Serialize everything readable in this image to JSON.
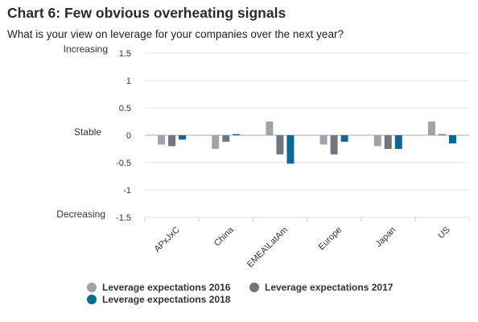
{
  "title": "Chart 6: Few obvious overheating signals",
  "subtitle": "What is your view on leverage for your companies over the next year?",
  "chart_data": {
    "type": "bar",
    "categories": [
      "APxJxC",
      "China",
      "EMEA\\LatAm",
      "Europe",
      "Japan",
      "US"
    ],
    "series": [
      {
        "name": "Leverage expectations 2016",
        "color": "#a0a3a7",
        "values": [
          -0.17,
          -0.25,
          0.25,
          -0.17,
          -0.2,
          0.25
        ]
      },
      {
        "name": "Leverage expectations 2017",
        "color": "#707781",
        "values": [
          -0.2,
          -0.12,
          -0.35,
          -0.35,
          -0.25,
          0.02
        ]
      },
      {
        "name": "Leverage expectations 2018",
        "color": "#0a6a95",
        "values": [
          -0.08,
          0.02,
          -0.52,
          -0.12,
          -0.25,
          -0.15
        ]
      }
    ],
    "ylim": [
      -1.5,
      1.5
    ],
    "yticks": [
      "1.5",
      "1",
      "0.5",
      "0",
      "-0.5",
      "-1",
      "-1.5"
    ],
    "side_labels": {
      "top": "Increasing",
      "middle": "Stable",
      "bottom": "Decreasing"
    },
    "grid": true
  }
}
